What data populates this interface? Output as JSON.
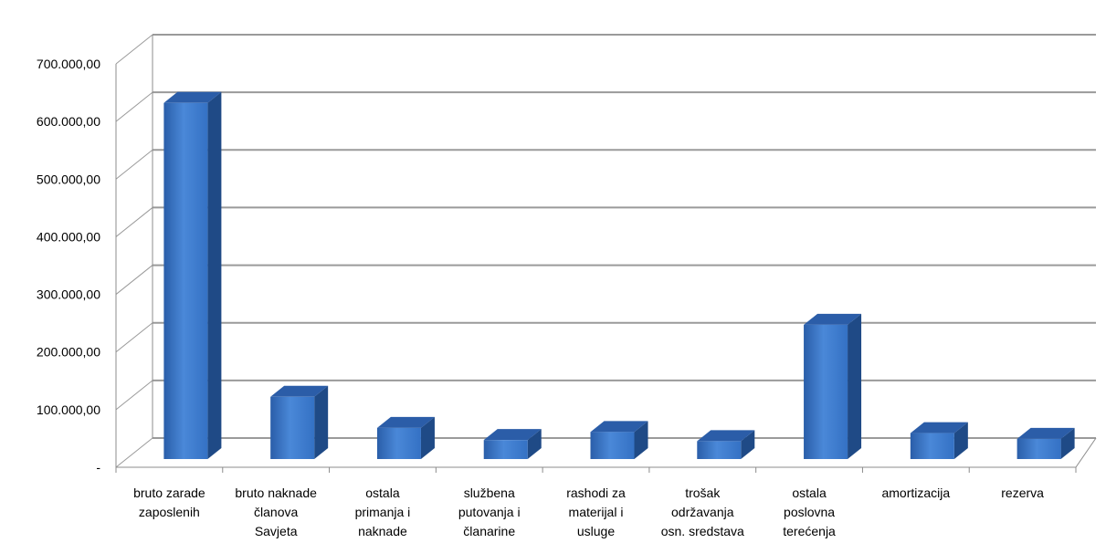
{
  "chart_data": {
    "type": "bar",
    "style": "3d-clustered-column",
    "title": "",
    "xlabel": "",
    "ylabel": "",
    "ylim": [
      0,
      700000
    ],
    "grid": true,
    "legend": "none",
    "y_ticks": [
      {
        "value": 0,
        "label": "-"
      },
      {
        "value": 100000,
        "label": "100.000,00"
      },
      {
        "value": 200000,
        "label": "200.000,00"
      },
      {
        "value": 300000,
        "label": "300.000,00"
      },
      {
        "value": 400000,
        "label": "400.000,00"
      },
      {
        "value": 500000,
        "label": "500.000,00"
      },
      {
        "value": 600000,
        "label": "600.000,00"
      },
      {
        "value": 700000,
        "label": "700.000,00"
      }
    ],
    "categories": [
      [
        "bruto zarade",
        "zaposlenih"
      ],
      [
        "bruto naknade",
        "članova",
        "Savjeta"
      ],
      [
        "ostala",
        "primanja i",
        "naknade"
      ],
      [
        "službena",
        "putovanja i",
        "članarine"
      ],
      [
        "rashodi za",
        "materijal i",
        "usluge"
      ],
      [
        "trošak",
        "održavanja",
        "osn. sredstava"
      ],
      [
        "ostala",
        "poslovna",
        "terećenja"
      ],
      [
        "amortizacija"
      ],
      [
        "rezerva"
      ]
    ],
    "values": [
      618000,
      108000,
      54000,
      33000,
      47000,
      31000,
      233000,
      45000,
      35000
    ],
    "colors": {
      "bar_front": "#3a76cc",
      "bar_side": "#1f4a86",
      "bar_top": "#2b5da8",
      "grid": "#9a9a9a",
      "axis": "#8c8c8c"
    }
  }
}
